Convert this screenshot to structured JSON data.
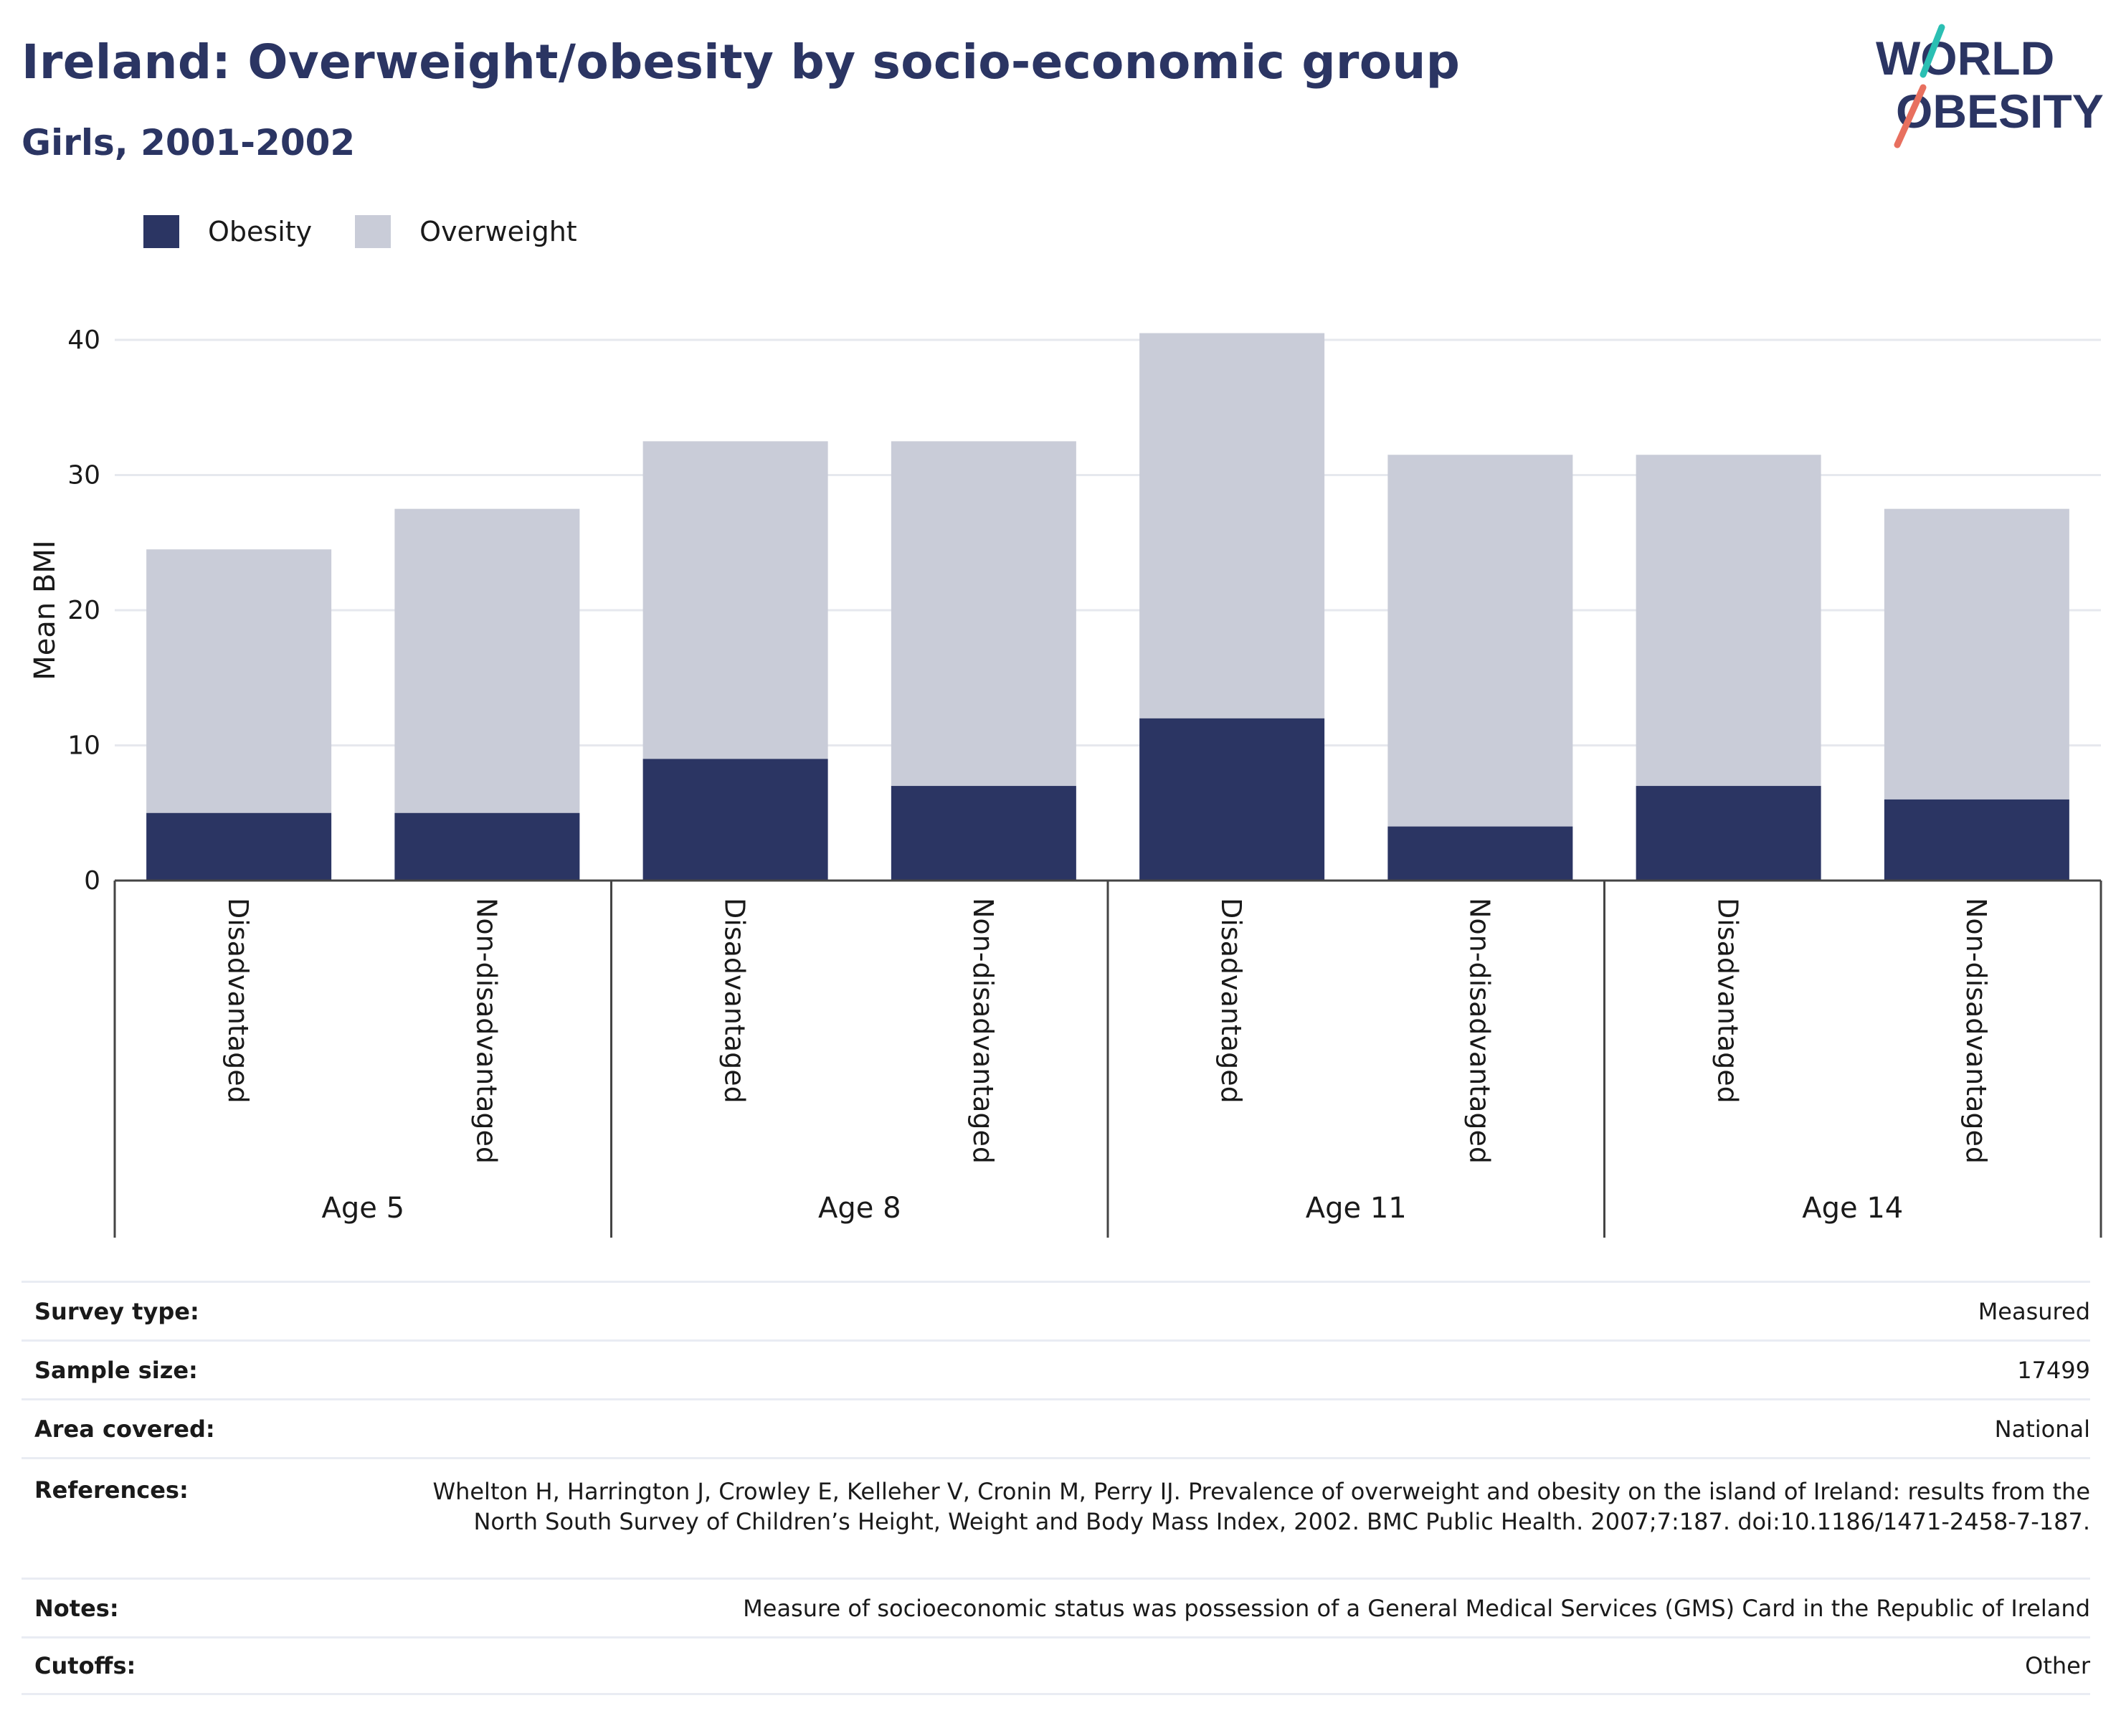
{
  "header": {
    "title": "Ireland: Overweight/obesity by socio-economic group",
    "subtitle": "Girls, 2001-2002"
  },
  "logo": {
    "line1": "WORLD",
    "line2": "OBESITY",
    "slash_colors": [
      "#2bbfb3",
      "#e8705f"
    ]
  },
  "legend": {
    "obesity": "Obesity",
    "overweight": "Overweight"
  },
  "colors": {
    "obesity": "#2b3563",
    "overweight": "#c9ccd8",
    "grid": "#e6e8ee",
    "axis": "#444444"
  },
  "chart_data": {
    "type": "bar",
    "stacked": true,
    "ylabel": "Mean BMI",
    "ylim": [
      0,
      42
    ],
    "yticks": [
      0,
      10,
      20,
      30,
      40
    ],
    "groups": [
      "Age 5",
      "Age 8",
      "Age 11",
      "Age 14"
    ],
    "categories": [
      "Disadvantaged",
      "Non-disadvantaged",
      "Disadvantaged",
      "Non-disadvantaged",
      "Disadvantaged",
      "Non-disadvantaged",
      "Disadvantaged",
      "Non-disadvantaged"
    ],
    "series": [
      {
        "name": "Obesity",
        "values": [
          5,
          5,
          9,
          7,
          12,
          4,
          7,
          6
        ]
      },
      {
        "name": "Overweight",
        "values": [
          19.5,
          22.5,
          23.5,
          25.5,
          28.5,
          27.5,
          24.5,
          21.5
        ]
      }
    ],
    "legend_position": "top-left",
    "grid": true
  },
  "info": {
    "survey_type": {
      "label": "Survey type:",
      "value": "Measured"
    },
    "sample_size": {
      "label": "Sample size:",
      "value": "17499"
    },
    "area_covered": {
      "label": "Area covered:",
      "value": "National"
    },
    "references": {
      "label": "References:",
      "value": "Whelton H, Harrington J, Crowley E, Kelleher V, Cronin M, Perry IJ. Prevalence of overweight and obesity on the island of Ireland: results from the North South Survey of Children’s Height, Weight and Body Mass Index, 2002. BMC Public Health. 2007;7:187. doi:10.1186/1471-2458-7-187."
    },
    "notes": {
      "label": "Notes:",
      "value": "Measure of socioeconomic status was possession of a General Medical Services (GMS) Card in the Republic of Ireland"
    },
    "cutoffs": {
      "label": "Cutoffs:",
      "value": "Other"
    }
  }
}
